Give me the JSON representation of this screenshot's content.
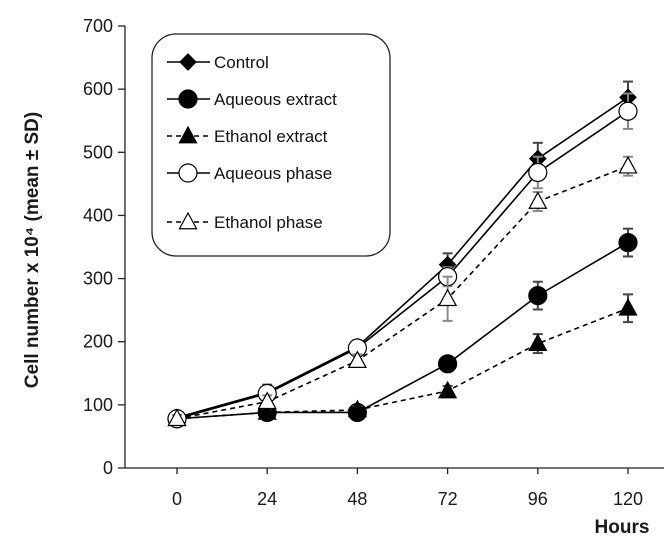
{
  "chart_data": {
    "type": "line",
    "title": "",
    "xlabel": "Hours",
    "ylabel": "Cell number x 10⁴ (mean ± SD)",
    "x": [
      0,
      24,
      48,
      72,
      96,
      120
    ],
    "xlim": [
      0,
      120
    ],
    "ylim": [
      0,
      700
    ],
    "yticks": [
      0,
      100,
      200,
      300,
      400,
      500,
      600,
      700
    ],
    "grid": false,
    "legend_position": "top-left",
    "series": [
      {
        "name": "Control",
        "values": [
          80,
          120,
          192,
          322,
          490,
          587
        ],
        "errors": [
          8,
          12,
          10,
          18,
          25,
          25
        ],
        "marker": "diamond",
        "fill": "#000000",
        "dash": false
      },
      {
        "name": "Aqueous extract",
        "values": [
          78,
          88,
          88,
          165,
          273,
          357
        ],
        "errors": [
          5,
          6,
          5,
          8,
          22,
          22
        ],
        "marker": "circle",
        "fill": "#000000",
        "dash": false
      },
      {
        "name": "Ethanol extract",
        "values": [
          78,
          88,
          92,
          122,
          197,
          253
        ],
        "errors": [
          5,
          5,
          6,
          8,
          15,
          22
        ],
        "marker": "triangle",
        "fill": "#000000",
        "dash": true
      },
      {
        "name": "Aqueous phase",
        "values": [
          78,
          118,
          190,
          303,
          468,
          565
        ],
        "errors": [
          6,
          12,
          10,
          15,
          25,
          28
        ],
        "marker": "circle",
        "fill": "#ffffff",
        "dash": false
      },
      {
        "name": "Ethanol phase",
        "values": [
          78,
          105,
          170,
          268,
          422,
          478
        ],
        "errors": [
          6,
          10,
          10,
          35,
          15,
          15
        ],
        "marker": "triangle",
        "fill": "#ffffff",
        "dash": true
      }
    ]
  }
}
